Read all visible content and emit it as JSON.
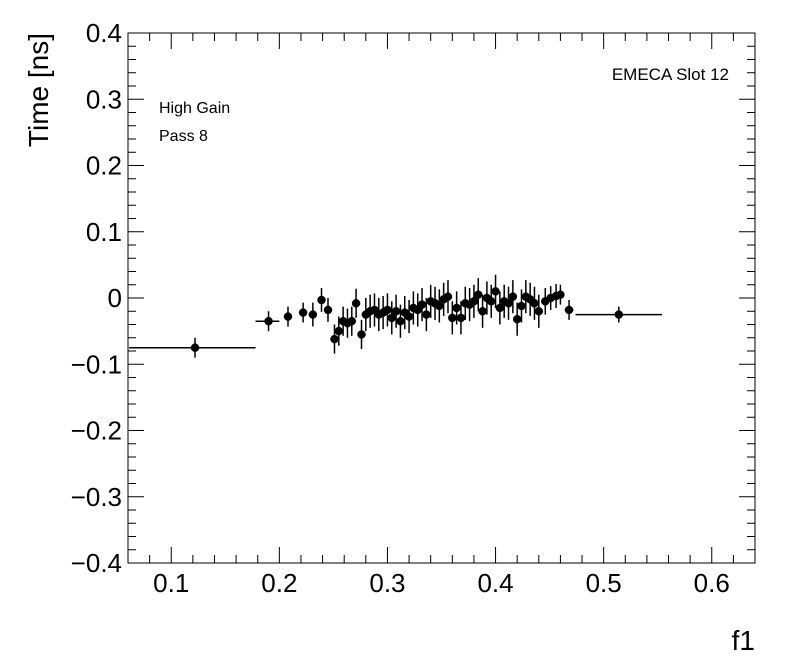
{
  "chart_data": {
    "type": "scatter",
    "title": "",
    "xlabel": "f1",
    "ylabel": "Time [ns]",
    "xlim": [
      0.06,
      0.64
    ],
    "ylim": [
      -0.4,
      0.4
    ],
    "grid": false,
    "x_ticks": [
      "0.1",
      "0.2",
      "0.3",
      "0.4",
      "0.5",
      "0.6"
    ],
    "y_ticks": [
      "−0.4",
      "−0.3",
      "−0.2",
      "−0.1",
      "0",
      "0.1",
      "0.2",
      "0.3",
      "0.4"
    ],
    "annotations": {
      "top_right": "EMECA Slot 12",
      "line1": "High Gain",
      "line2": "Pass 8"
    },
    "series": [
      {
        "marker": "circle",
        "color": "#000000",
        "points": [
          {
            "x": 0.122,
            "y": -0.075,
            "yerr": 0.015,
            "xerr": [
              0.061,
              0.056
            ]
          },
          {
            "x": 0.19,
            "y": -0.035,
            "yerr": 0.015,
            "xerr": [
              0.012,
              0.01
            ]
          },
          {
            "x": 0.208,
            "y": -0.028,
            "yerr": 0.015
          },
          {
            "x": 0.222,
            "y": -0.022,
            "yerr": 0.015
          },
          {
            "x": 0.231,
            "y": -0.025,
            "yerr": 0.018
          },
          {
            "x": 0.239,
            "y": -0.003,
            "yerr": 0.018
          },
          {
            "x": 0.245,
            "y": -0.018,
            "yerr": 0.018
          },
          {
            "x": 0.251,
            "y": -0.062,
            "yerr": 0.022
          },
          {
            "x": 0.255,
            "y": -0.05,
            "yerr": 0.022
          },
          {
            "x": 0.259,
            "y": -0.035,
            "yerr": 0.022
          },
          {
            "x": 0.263,
            "y": -0.038,
            "yerr": 0.022
          },
          {
            "x": 0.267,
            "y": -0.035,
            "yerr": 0.022
          },
          {
            "x": 0.271,
            "y": -0.008,
            "yerr": 0.022
          },
          {
            "x": 0.276,
            "y": -0.055,
            "yerr": 0.022
          },
          {
            "x": 0.28,
            "y": -0.025,
            "yerr": 0.025
          },
          {
            "x": 0.284,
            "y": -0.02,
            "yerr": 0.025
          },
          {
            "x": 0.288,
            "y": -0.018,
            "yerr": 0.025
          },
          {
            "x": 0.292,
            "y": -0.025,
            "yerr": 0.025
          },
          {
            "x": 0.296,
            "y": -0.022,
            "yerr": 0.025
          },
          {
            "x": 0.3,
            "y": -0.018,
            "yerr": 0.025
          },
          {
            "x": 0.304,
            "y": -0.03,
            "yerr": 0.025
          },
          {
            "x": 0.308,
            "y": -0.02,
            "yerr": 0.025
          },
          {
            "x": 0.312,
            "y": -0.035,
            "yerr": 0.025
          },
          {
            "x": 0.316,
            "y": -0.022,
            "yerr": 0.025
          },
          {
            "x": 0.32,
            "y": -0.028,
            "yerr": 0.025
          },
          {
            "x": 0.324,
            "y": -0.015,
            "yerr": 0.025
          },
          {
            "x": 0.328,
            "y": -0.018,
            "yerr": 0.025
          },
          {
            "x": 0.332,
            "y": -0.01,
            "yerr": 0.025
          },
          {
            "x": 0.336,
            "y": -0.025,
            "yerr": 0.025
          },
          {
            "x": 0.34,
            "y": -0.005,
            "yerr": 0.025
          },
          {
            "x": 0.344,
            "y": -0.008,
            "yerr": 0.025
          },
          {
            "x": 0.348,
            "y": -0.012,
            "yerr": 0.025
          },
          {
            "x": 0.352,
            "y": -0.002,
            "yerr": 0.025
          },
          {
            "x": 0.356,
            "y": 0.002,
            "yerr": 0.025
          },
          {
            "x": 0.36,
            "y": -0.03,
            "yerr": 0.025
          },
          {
            "x": 0.364,
            "y": -0.015,
            "yerr": 0.025
          },
          {
            "x": 0.368,
            "y": -0.03,
            "yerr": 0.025
          },
          {
            "x": 0.372,
            "y": -0.008,
            "yerr": 0.025
          },
          {
            "x": 0.376,
            "y": -0.01,
            "yerr": 0.025
          },
          {
            "x": 0.38,
            "y": -0.005,
            "yerr": 0.025
          },
          {
            "x": 0.384,
            "y": 0.005,
            "yerr": 0.025
          },
          {
            "x": 0.388,
            "y": -0.02,
            "yerr": 0.025
          },
          {
            "x": 0.392,
            "y": 0.0,
            "yerr": 0.025
          },
          {
            "x": 0.396,
            "y": -0.005,
            "yerr": 0.025
          },
          {
            "x": 0.4,
            "y": 0.01,
            "yerr": 0.025
          },
          {
            "x": 0.404,
            "y": -0.015,
            "yerr": 0.025
          },
          {
            "x": 0.408,
            "y": -0.005,
            "yerr": 0.025
          },
          {
            "x": 0.412,
            "y": -0.008,
            "yerr": 0.025
          },
          {
            "x": 0.416,
            "y": 0.002,
            "yerr": 0.025
          },
          {
            "x": 0.42,
            "y": -0.032,
            "yerr": 0.025
          },
          {
            "x": 0.424,
            "y": -0.012,
            "yerr": 0.025
          },
          {
            "x": 0.428,
            "y": 0.002,
            "yerr": 0.025
          },
          {
            "x": 0.432,
            "y": -0.002,
            "yerr": 0.025
          },
          {
            "x": 0.436,
            "y": -0.008,
            "yerr": 0.025
          },
          {
            "x": 0.44,
            "y": -0.02,
            "yerr": 0.025
          },
          {
            "x": 0.446,
            "y": -0.005,
            "yerr": 0.02
          },
          {
            "x": 0.451,
            "y": 0.0,
            "yerr": 0.018
          },
          {
            "x": 0.456,
            "y": 0.003,
            "yerr": 0.018
          },
          {
            "x": 0.46,
            "y": 0.005,
            "yerr": 0.015
          },
          {
            "x": 0.468,
            "y": -0.018,
            "yerr": 0.015,
            "xerr": [
              0.004,
              0.004
            ]
          },
          {
            "x": 0.514,
            "y": -0.025,
            "yerr": 0.012,
            "xerr": [
              0.04,
              0.04
            ]
          }
        ]
      }
    ]
  }
}
